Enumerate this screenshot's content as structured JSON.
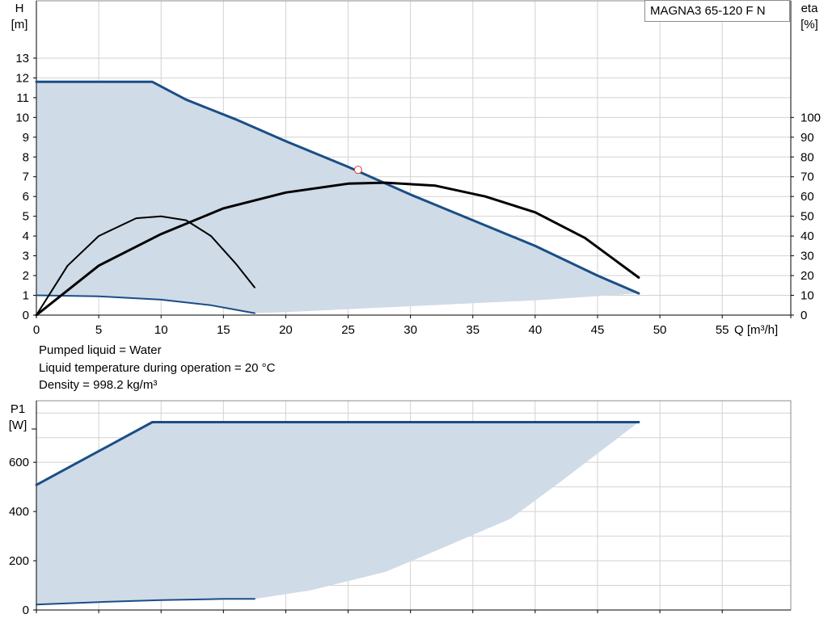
{
  "chart_data": [
    {
      "type": "line",
      "title": "",
      "legend": "MAGNA3 65-120 F N",
      "legend_position": "top-right",
      "xlabel": "Q [m³/h]",
      "ylabel_left": [
        "H",
        "[m]"
      ],
      "ylabel_right": [
        "eta",
        "[%]"
      ],
      "x_ticks": [
        0,
        5,
        10,
        15,
        20,
        25,
        30,
        35,
        40,
        45,
        50,
        55
      ],
      "y_left_ticks": [
        0,
        1,
        2,
        3,
        4,
        5,
        6,
        7,
        8,
        9,
        10,
        11,
        12,
        13
      ],
      "y_right_ticks": [
        0,
        10,
        20,
        30,
        40,
        50,
        60,
        70,
        80,
        90,
        100
      ],
      "xlim": [
        0,
        60.5
      ],
      "ylim_left": [
        0,
        15.9
      ],
      "ylim_right": [
        0,
        100
      ],
      "grid": true,
      "series": [
        {
          "role": "max-head",
          "axis": "left",
          "color": "#1a4e86",
          "width": 3,
          "x": [
            0,
            9.3,
            12,
            16,
            20,
            25,
            30,
            35,
            40,
            45,
            48.3
          ],
          "y": [
            11.8,
            11.8,
            10.9,
            9.9,
            8.8,
            7.5,
            6.1,
            4.8,
            3.5,
            2.0,
            1.1
          ]
        },
        {
          "role": "min-head",
          "axis": "left",
          "color": "#1a4e86",
          "width": 2,
          "x": [
            0,
            5,
            10,
            14,
            17.5
          ],
          "y": [
            1.0,
            0.95,
            0.78,
            0.5,
            0.1
          ]
        },
        {
          "role": "eta-max",
          "axis": "right",
          "color": "#000000",
          "width": 3,
          "x": [
            0,
            5,
            10,
            15,
            20,
            25,
            28,
            32,
            36,
            40,
            44,
            48.3
          ],
          "y": [
            0,
            25,
            41,
            54,
            62,
            66.5,
            67,
            65.5,
            60,
            52,
            39,
            19
          ]
        },
        {
          "role": "eta-min",
          "axis": "right",
          "color": "#000000",
          "width": 2,
          "x": [
            0,
            2.5,
            5,
            8,
            10,
            12,
            14,
            16,
            17.5
          ],
          "y": [
            0,
            25,
            40,
            49,
            50,
            48,
            40,
            26,
            14
          ]
        }
      ],
      "duty_point": {
        "x": 25.8,
        "y": 7.35
      },
      "area": {
        "x": [
          0,
          9.3,
          12,
          16,
          20,
          25,
          30,
          35,
          40,
          45,
          48.3,
          40,
          30,
          20,
          17.5,
          14,
          10,
          5,
          0
        ],
        "y": [
          11.8,
          11.8,
          10.9,
          9.9,
          8.8,
          7.5,
          6.1,
          4.8,
          3.5,
          2.0,
          1.1,
          0.75,
          0.45,
          0.15,
          0.1,
          0.5,
          0.78,
          0.95,
          1.0
        ]
      },
      "fill_color": "#cfdbe7"
    },
    {
      "type": "line",
      "title": "",
      "xlabel": "",
      "ylabel": [
        "P1",
        "[W]"
      ],
      "y_ticks": [
        0,
        200,
        400,
        600
      ],
      "x_grid": [
        0,
        5,
        10,
        15,
        20,
        25,
        30,
        35,
        40,
        45,
        50,
        55
      ],
      "xlim": [
        0,
        60.5
      ],
      "ylim": [
        0,
        850
      ],
      "grid": true,
      "series": [
        {
          "role": "max-power",
          "axis": "left",
          "color": "#1a4e86",
          "width": 3,
          "x": [
            0,
            9.3,
            48.3
          ],
          "y": [
            508,
            763,
            763
          ]
        },
        {
          "role": "min-power",
          "axis": "left",
          "color": "#1a4e86",
          "width": 2,
          "x": [
            0,
            5,
            10,
            15,
            17.5
          ],
          "y": [
            22,
            32,
            40,
            45,
            45
          ]
        }
      ],
      "area": {
        "x": [
          0,
          9.3,
          48.3,
          42,
          38,
          32,
          28,
          22,
          17.5,
          15,
          10,
          5,
          0
        ],
        "y": [
          508,
          763,
          763,
          520,
          370,
          240,
          155,
          80,
          45,
          45,
          40,
          32,
          22
        ]
      },
      "fill_color": "#cfdbe7"
    }
  ],
  "info_lines": [
    "Pumped liquid = Water",
    "Liquid temperature during operation = 20 °C",
    "Density = 998.2 kg/m³"
  ]
}
